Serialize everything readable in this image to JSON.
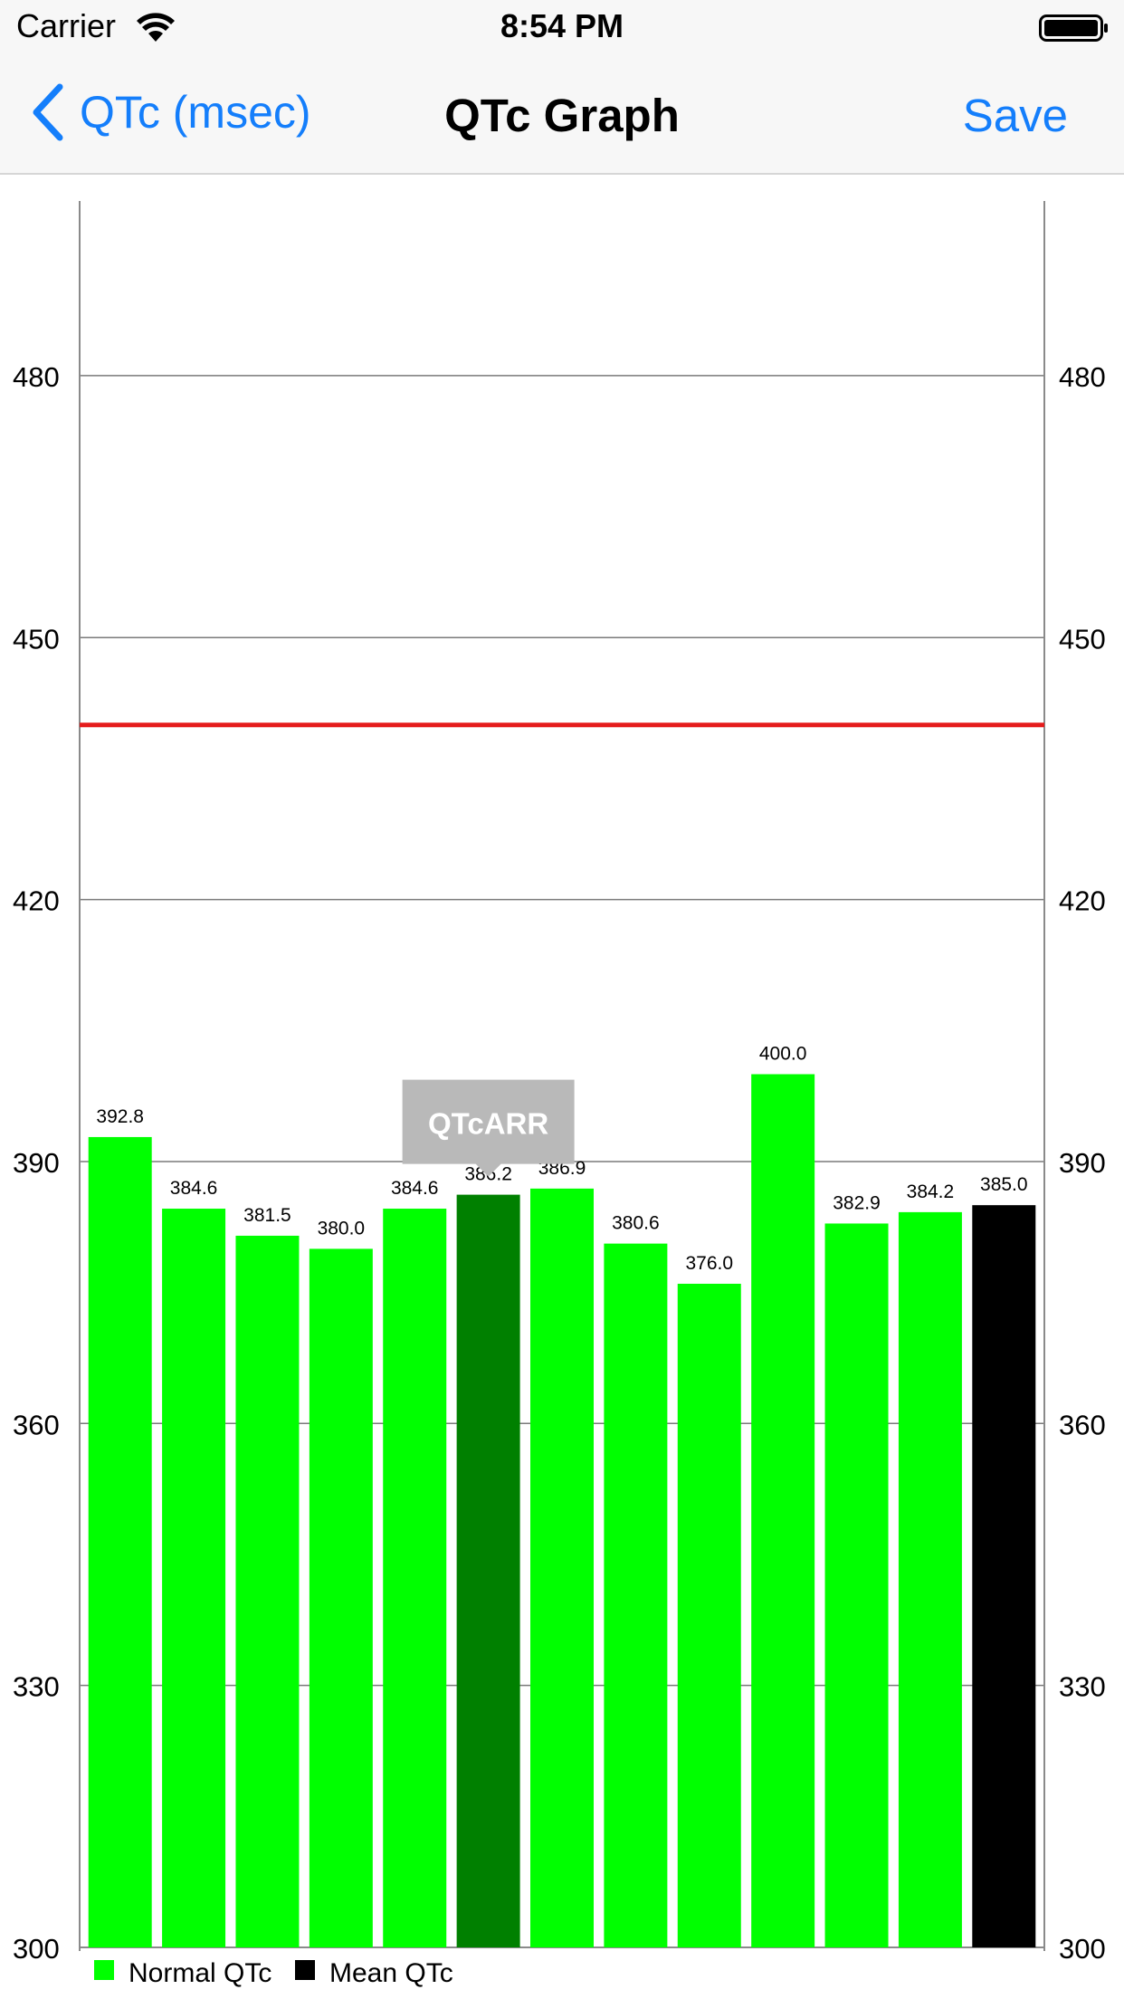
{
  "status_bar": {
    "carrier": "Carrier",
    "time": "8:54 PM"
  },
  "nav_bar": {
    "back_label": "QTc (msec)",
    "title": "QTc Graph",
    "save_label": "Save"
  },
  "colors": {
    "normal": "#00ff00",
    "selected": "#008000",
    "mean": "#000000",
    "limit_line": "#e51c1c",
    "tint": "#147efb",
    "tooltip_bg": "#b9b9b9"
  },
  "chart_data": {
    "type": "bar",
    "ylim": [
      300,
      500
    ],
    "ytick_values": [
      300,
      330,
      360,
      390,
      420,
      450,
      480
    ],
    "ytick_labels": [
      "300",
      "330",
      "360",
      "390",
      "420",
      "450",
      "480"
    ],
    "reference_line": 440,
    "values": [
      392.8,
      384.6,
      381.5,
      380.0,
      384.6,
      386.2,
      386.9,
      380.6,
      376.0,
      400.0,
      382.9,
      384.2,
      385.0
    ],
    "value_labels": [
      "392.8",
      "384.6",
      "381.5",
      "380.0",
      "384.6",
      "386.2",
      "386.9",
      "380.6",
      "376.0",
      "400.0",
      "382.9",
      "384.2",
      "385.0"
    ],
    "bar_kinds": [
      "normal",
      "normal",
      "normal",
      "normal",
      "normal",
      "selected",
      "normal",
      "normal",
      "normal",
      "normal",
      "normal",
      "normal",
      "mean"
    ],
    "selected_index": 5,
    "tooltip": "QTcARR",
    "legend": [
      {
        "label": "Normal QTc",
        "color": "#00ff00"
      },
      {
        "label": "Mean QTc",
        "color": "#000000"
      }
    ],
    "grid": true
  }
}
